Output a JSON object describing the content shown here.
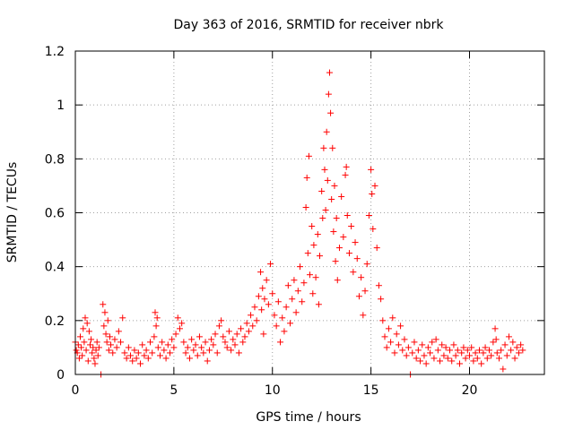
{
  "chart_data": {
    "type": "scatter",
    "title": "Day 363 of 2016, SRMTID for receiver nbrk",
    "xlabel": "GPS time / hours",
    "ylabel": "SRMTID / TECUs",
    "xlim": [
      0,
      23.8
    ],
    "ylim": [
      0,
      1.2
    ],
    "xticks": [
      0,
      5,
      10,
      15,
      20
    ],
    "xtick_labels": [
      "0",
      "5",
      "10",
      "15",
      "20"
    ],
    "yticks": [
      0,
      0.2,
      0.4,
      0.6,
      0.8,
      1,
      1.2
    ],
    "ytick_labels": [
      "0",
      "0.2",
      "0.4",
      "0.6",
      "0.8",
      "1",
      "1.2"
    ],
    "grid": true,
    "legend": "none",
    "marker": "+",
    "color": "#ff0000",
    "series": [
      {
        "name": "SRMTID",
        "points": [
          [
            0.0,
            0.12
          ],
          [
            0.05,
            0.09
          ],
          [
            0.1,
            0.08
          ],
          [
            0.15,
            0.11
          ],
          [
            0.2,
            0.06
          ],
          [
            0.25,
            0.14
          ],
          [
            0.3,
            0.1
          ],
          [
            0.35,
            0.07
          ],
          [
            0.4,
            0.17
          ],
          [
            0.45,
            0.12
          ],
          [
            0.5,
            0.21
          ],
          [
            0.55,
            0.09
          ],
          [
            0.6,
            0.19
          ],
          [
            0.65,
            0.05
          ],
          [
            0.7,
            0.16
          ],
          [
            0.75,
            0.11
          ],
          [
            0.8,
            0.13
          ],
          [
            0.85,
            0.08
          ],
          [
            0.9,
            0.1
          ],
          [
            0.95,
            0.06
          ],
          [
            1.0,
            0.04
          ],
          [
            1.05,
            0.09
          ],
          [
            1.1,
            0.12
          ],
          [
            1.15,
            0.07
          ],
          [
            1.2,
            0.1
          ],
          [
            1.3,
            0.0
          ],
          [
            1.4,
            0.26
          ],
          [
            1.45,
            0.18
          ],
          [
            1.5,
            0.23
          ],
          [
            1.55,
            0.15
          ],
          [
            1.6,
            0.12
          ],
          [
            1.65,
            0.2
          ],
          [
            1.7,
            0.09
          ],
          [
            1.75,
            0.14
          ],
          [
            1.8,
            0.11
          ],
          [
            1.9,
            0.08
          ],
          [
            2.0,
            0.13
          ],
          [
            2.1,
            0.1
          ],
          [
            2.2,
            0.16
          ],
          [
            2.3,
            0.12
          ],
          [
            2.4,
            0.21
          ],
          [
            2.5,
            0.08
          ],
          [
            2.6,
            0.06
          ],
          [
            2.7,
            0.1
          ],
          [
            2.8,
            0.07
          ],
          [
            2.9,
            0.05
          ],
          [
            3.0,
            0.09
          ],
          [
            3.1,
            0.06
          ],
          [
            3.2,
            0.08
          ],
          [
            3.3,
            0.04
          ],
          [
            3.4,
            0.11
          ],
          [
            3.5,
            0.07
          ],
          [
            3.6,
            0.09
          ],
          [
            3.7,
            0.06
          ],
          [
            3.8,
            0.12
          ],
          [
            3.9,
            0.08
          ],
          [
            4.0,
            0.14
          ],
          [
            4.05,
            0.23
          ],
          [
            4.1,
            0.18
          ],
          [
            4.15,
            0.21
          ],
          [
            4.2,
            0.1
          ],
          [
            4.3,
            0.07
          ],
          [
            4.4,
            0.12
          ],
          [
            4.5,
            0.09
          ],
          [
            4.6,
            0.06
          ],
          [
            4.7,
            0.11
          ],
          [
            4.8,
            0.08
          ],
          [
            4.9,
            0.13
          ],
          [
            5.0,
            0.1
          ],
          [
            5.1,
            0.15
          ],
          [
            5.2,
            0.21
          ],
          [
            5.3,
            0.17
          ],
          [
            5.4,
            0.19
          ],
          [
            5.5,
            0.12
          ],
          [
            5.6,
            0.08
          ],
          [
            5.7,
            0.1
          ],
          [
            5.8,
            0.06
          ],
          [
            5.9,
            0.13
          ],
          [
            6.0,
            0.09
          ],
          [
            6.1,
            0.11
          ],
          [
            6.2,
            0.07
          ],
          [
            6.3,
            0.14
          ],
          [
            6.4,
            0.1
          ],
          [
            6.5,
            0.08
          ],
          [
            6.6,
            0.12
          ],
          [
            6.7,
            0.05
          ],
          [
            6.8,
            0.09
          ],
          [
            6.9,
            0.13
          ],
          [
            7.0,
            0.11
          ],
          [
            7.1,
            0.15
          ],
          [
            7.2,
            0.08
          ],
          [
            7.3,
            0.18
          ],
          [
            7.4,
            0.2
          ],
          [
            7.5,
            0.14
          ],
          [
            7.6,
            0.12
          ],
          [
            7.7,
            0.1
          ],
          [
            7.8,
            0.16
          ],
          [
            7.9,
            0.09
          ],
          [
            8.0,
            0.13
          ],
          [
            8.1,
            0.11
          ],
          [
            8.2,
            0.15
          ],
          [
            8.3,
            0.08
          ],
          [
            8.4,
            0.17
          ],
          [
            8.5,
            0.12
          ],
          [
            8.6,
            0.14
          ],
          [
            8.7,
            0.19
          ],
          [
            8.8,
            0.16
          ],
          [
            8.9,
            0.22
          ],
          [
            9.0,
            0.18
          ],
          [
            9.1,
            0.25
          ],
          [
            9.2,
            0.2
          ],
          [
            9.3,
            0.29
          ],
          [
            9.4,
            0.38
          ],
          [
            9.45,
            0.24
          ],
          [
            9.5,
            0.32
          ],
          [
            9.55,
            0.15
          ],
          [
            9.6,
            0.28
          ],
          [
            9.7,
            0.35
          ],
          [
            9.8,
            0.26
          ],
          [
            9.9,
            0.41
          ],
          [
            10.0,
            0.3
          ],
          [
            10.1,
            0.22
          ],
          [
            10.2,
            0.18
          ],
          [
            10.3,
            0.27
          ],
          [
            10.4,
            0.12
          ],
          [
            10.5,
            0.21
          ],
          [
            10.6,
            0.16
          ],
          [
            10.7,
            0.25
          ],
          [
            10.8,
            0.33
          ],
          [
            10.9,
            0.19
          ],
          [
            11.0,
            0.28
          ],
          [
            11.1,
            0.35
          ],
          [
            11.2,
            0.23
          ],
          [
            11.3,
            0.31
          ],
          [
            11.4,
            0.4
          ],
          [
            11.5,
            0.27
          ],
          [
            11.6,
            0.34
          ],
          [
            11.7,
            0.62
          ],
          [
            11.75,
            0.73
          ],
          [
            11.8,
            0.45
          ],
          [
            11.85,
            0.81
          ],
          [
            11.9,
            0.37
          ],
          [
            12.0,
            0.55
          ],
          [
            12.05,
            0.3
          ],
          [
            12.1,
            0.48
          ],
          [
            12.2,
            0.36
          ],
          [
            12.3,
            0.52
          ],
          [
            12.35,
            0.26
          ],
          [
            12.4,
            0.44
          ],
          [
            12.5,
            0.68
          ],
          [
            12.55,
            0.58
          ],
          [
            12.6,
            0.84
          ],
          [
            12.65,
            0.76
          ],
          [
            12.7,
            0.61
          ],
          [
            12.75,
            0.9
          ],
          [
            12.8,
            0.72
          ],
          [
            12.85,
            1.04
          ],
          [
            12.9,
            1.12
          ],
          [
            12.95,
            0.97
          ],
          [
            13.0,
            0.65
          ],
          [
            13.05,
            0.84
          ],
          [
            13.1,
            0.53
          ],
          [
            13.15,
            0.7
          ],
          [
            13.2,
            0.42
          ],
          [
            13.25,
            0.58
          ],
          [
            13.3,
            0.35
          ],
          [
            13.4,
            0.47
          ],
          [
            13.5,
            0.66
          ],
          [
            13.6,
            0.51
          ],
          [
            13.7,
            0.74
          ],
          [
            13.75,
            0.77
          ],
          [
            13.8,
            0.59
          ],
          [
            13.9,
            0.45
          ],
          [
            14.0,
            0.55
          ],
          [
            14.1,
            0.38
          ],
          [
            14.2,
            0.49
          ],
          [
            14.3,
            0.43
          ],
          [
            14.4,
            0.29
          ],
          [
            14.5,
            0.36
          ],
          [
            14.6,
            0.22
          ],
          [
            14.7,
            0.31
          ],
          [
            14.8,
            0.41
          ],
          [
            14.9,
            0.59
          ],
          [
            15.0,
            0.76
          ],
          [
            15.05,
            0.67
          ],
          [
            15.1,
            0.54
          ],
          [
            15.2,
            0.7
          ],
          [
            15.3,
            0.47
          ],
          [
            15.4,
            0.33
          ],
          [
            15.5,
            0.28
          ],
          [
            15.6,
            0.2
          ],
          [
            15.7,
            0.14
          ],
          [
            15.8,
            0.1
          ],
          [
            15.9,
            0.17
          ],
          [
            16.0,
            0.12
          ],
          [
            16.1,
            0.21
          ],
          [
            16.2,
            0.08
          ],
          [
            16.3,
            0.15
          ],
          [
            16.4,
            0.11
          ],
          [
            16.5,
            0.18
          ],
          [
            16.6,
            0.09
          ],
          [
            16.7,
            0.13
          ],
          [
            16.8,
            0.07
          ],
          [
            16.9,
            0.1
          ],
          [
            17.0,
            0.0
          ],
          [
            17.1,
            0.08
          ],
          [
            17.2,
            0.12
          ],
          [
            17.3,
            0.06
          ],
          [
            17.4,
            0.09
          ],
          [
            17.5,
            0.05
          ],
          [
            17.6,
            0.11
          ],
          [
            17.7,
            0.07
          ],
          [
            17.8,
            0.04
          ],
          [
            17.9,
            0.1
          ],
          [
            18.0,
            0.08
          ],
          [
            18.1,
            0.12
          ],
          [
            18.2,
            0.06
          ],
          [
            18.3,
            0.13
          ],
          [
            18.4,
            0.09
          ],
          [
            18.5,
            0.05
          ],
          [
            18.6,
            0.11
          ],
          [
            18.7,
            0.07
          ],
          [
            18.8,
            0.1
          ],
          [
            18.9,
            0.06
          ],
          [
            19.0,
            0.09
          ],
          [
            19.1,
            0.05
          ],
          [
            19.2,
            0.11
          ],
          [
            19.3,
            0.07
          ],
          [
            19.4,
            0.09
          ],
          [
            19.5,
            0.04
          ],
          [
            19.6,
            0.08
          ],
          [
            19.7,
            0.1
          ],
          [
            19.8,
            0.06
          ],
          [
            19.9,
            0.09
          ],
          [
            20.0,
            0.07
          ],
          [
            20.1,
            0.1
          ],
          [
            20.2,
            0.05
          ],
          [
            20.3,
            0.08
          ],
          [
            20.4,
            0.06
          ],
          [
            20.5,
            0.09
          ],
          [
            20.6,
            0.04
          ],
          [
            20.7,
            0.08
          ],
          [
            20.8,
            0.1
          ],
          [
            20.9,
            0.06
          ],
          [
            21.0,
            0.09
          ],
          [
            21.1,
            0.07
          ],
          [
            21.2,
            0.12
          ],
          [
            21.3,
            0.17
          ],
          [
            21.35,
            0.13
          ],
          [
            21.4,
            0.08
          ],
          [
            21.5,
            0.06
          ],
          [
            21.6,
            0.09
          ],
          [
            21.7,
            0.02
          ],
          [
            21.8,
            0.11
          ],
          [
            21.9,
            0.07
          ],
          [
            22.0,
            0.14
          ],
          [
            22.1,
            0.09
          ],
          [
            22.2,
            0.12
          ],
          [
            22.3,
            0.06
          ],
          [
            22.4,
            0.1
          ],
          [
            22.5,
            0.08
          ],
          [
            22.6,
            0.11
          ],
          [
            22.7,
            0.09
          ]
        ]
      }
    ]
  }
}
